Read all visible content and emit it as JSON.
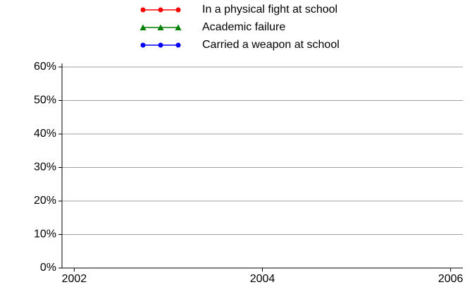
{
  "chart_data": {
    "type": "line",
    "x": [],
    "series": [
      {
        "name": "In a physical fight at school",
        "color": "#ff0000",
        "marker": "circle",
        "values": []
      },
      {
        "name": "Academic failure",
        "color": "#008000",
        "marker": "triangle",
        "values": []
      },
      {
        "name": "Carried a weapon at school",
        "color": "#0000ff",
        "marker": "circle",
        "values": []
      }
    ],
    "xlim": [
      2001.87,
      2006.13
    ],
    "xticks": [
      2002,
      2004,
      2006
    ],
    "ylim": [
      0,
      60
    ],
    "yticks": [
      {
        "value": 0,
        "label": "0%"
      },
      {
        "value": 10,
        "label": "10%"
      },
      {
        "value": 20,
        "label": "20%"
      },
      {
        "value": 30,
        "label": "30%"
      },
      {
        "value": 40,
        "label": "40%"
      },
      {
        "value": 50,
        "label": "50%"
      },
      {
        "value": 60,
        "label": "60%"
      }
    ],
    "grid": true,
    "legend": "top"
  }
}
